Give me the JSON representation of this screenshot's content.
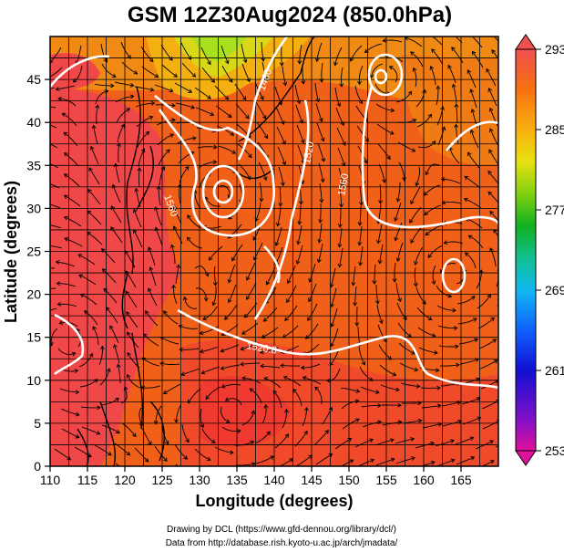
{
  "title": "GSM 12Z30Aug2024 (850.0hPa)",
  "x_axis": {
    "label": "Longitude (degrees)",
    "range": [
      110,
      170
    ],
    "ticks": [
      "110",
      "115",
      "120",
      "125",
      "130",
      "135",
      "140",
      "145",
      "150",
      "155",
      "160",
      "165"
    ]
  },
  "y_axis": {
    "label": "Latitude  (degrees)",
    "range": [
      0,
      50
    ],
    "ticks": [
      "0",
      "5",
      "10",
      "15",
      "20",
      "25",
      "30",
      "35",
      "40",
      "45"
    ]
  },
  "colorbar": {
    "ticks": [
      "253",
      "261",
      "269",
      "277",
      "285",
      "293"
    ],
    "range": [
      253,
      293
    ],
    "colors": [
      "#e0109c",
      "#6a10c8",
      "#1010d0",
      "#1060ff",
      "#10b0ff",
      "#10d0c0",
      "#10c060",
      "#20b020",
      "#80d010",
      "#e0e010",
      "#f8b010",
      "#f88010",
      "#f04020",
      "#f05050"
    ]
  },
  "contour_labels": [
    "1560",
    "1520",
    "1560",
    "1520.0",
    "1480"
  ],
  "credits": {
    "line1": "Drawing by DCL (https://www.gfd-dennou.org/library/dcl/)",
    "line2": "Data from http://database.rish.kyoto-u.ac.jp/arch/jmadata/"
  },
  "colors": {
    "field_main": "#f06018",
    "field_warm": "#f04040",
    "field_cool": "#f0a010",
    "field_cold": "#b8e020",
    "contour": "#ffffff",
    "streamline": "#000000"
  }
}
